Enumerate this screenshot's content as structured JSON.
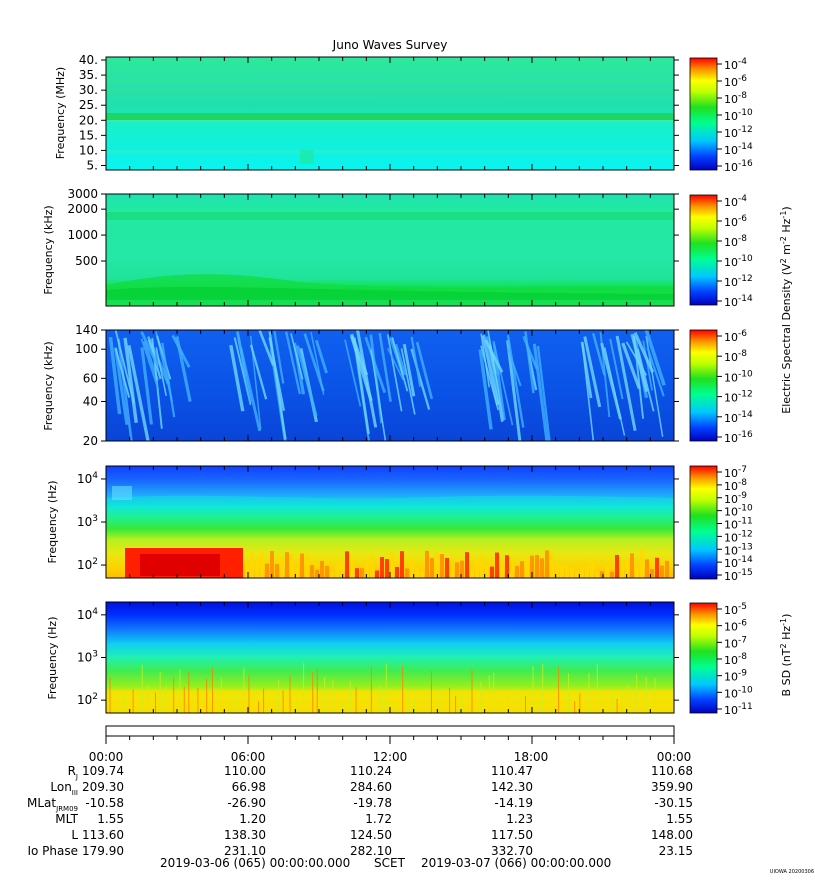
{
  "chart_data": {
    "type": "heatmap",
    "title": "Juno Waves Survey",
    "panels": [
      {
        "id": "p1",
        "ylabel": "Frequency (MHz)",
        "yscale": "linear",
        "ylim": [
          3.5,
          41
        ],
        "yticks": [
          {
            "v": 40,
            "label": "40."
          },
          {
            "v": 35,
            "label": "35."
          },
          {
            "v": 30,
            "label": "30."
          },
          {
            "v": 25,
            "label": "25."
          },
          {
            "v": 20,
            "label": "20."
          },
          {
            "v": 15,
            "label": "15."
          },
          {
            "v": 10,
            "label": "10."
          },
          {
            "v": 5,
            "label": "5."
          }
        ],
        "colorbar": {
          "label": "",
          "ticks": [
            {
              "exp": "-4"
            },
            {
              "exp": "-6"
            },
            {
              "exp": "-8"
            },
            {
              "exp": "-10"
            },
            {
              "exp": "-12"
            },
            {
              "exp": "-14"
            },
            {
              "exp": "-16"
            }
          ]
        }
      },
      {
        "id": "p2",
        "ylabel": "Frequency (kHz)",
        "yscale": "log",
        "ylim": [
          150,
          3000
        ],
        "yticks": [
          {
            "v": 3000,
            "label": "3000"
          },
          {
            "v": 2000,
            "label": "2000"
          },
          {
            "v": 1000,
            "label": "1000"
          },
          {
            "v": 500,
            "label": "500"
          }
        ],
        "colorbar": {
          "label": "",
          "ticks": [
            {
              "exp": "-4"
            },
            {
              "exp": "-6"
            },
            {
              "exp": "-8"
            },
            {
              "exp": "-10"
            },
            {
              "exp": "-12"
            },
            {
              "exp": "-14"
            }
          ]
        }
      },
      {
        "id": "p3",
        "ylabel": "Frequency (kHz)",
        "yscale": "log",
        "ylim": [
          20,
          140
        ],
        "yticks": [
          {
            "v": 140,
            "label": "140"
          },
          {
            "v": 100,
            "label": "100"
          },
          {
            "v": 60,
            "label": "60"
          },
          {
            "v": 40,
            "label": "40"
          },
          {
            "v": 20,
            "label": "20"
          }
        ],
        "colorbar": {
          "label": "Electric Spectral Density",
          "ticks": [
            {
              "exp": "-6"
            },
            {
              "exp": "-8"
            },
            {
              "exp": "-10"
            },
            {
              "exp": "-12"
            },
            {
              "exp": "-14"
            },
            {
              "exp": "-16"
            }
          ]
        }
      },
      {
        "id": "p4",
        "ylabel": "Frequency (Hz)",
        "yscale": "log",
        "ylim": [
          50,
          20000
        ],
        "yticks": [
          {
            "v": 10000,
            "base": "10",
            "exp": "4"
          },
          {
            "v": 1000,
            "base": "10",
            "exp": "3"
          },
          {
            "v": 100,
            "base": "10",
            "exp": "2"
          }
        ],
        "colorbar": {
          "label": "",
          "ticks": [
            {
              "exp": "-7"
            },
            {
              "exp": "-8"
            },
            {
              "exp": "-9"
            },
            {
              "exp": "-10"
            },
            {
              "exp": "-11"
            },
            {
              "exp": "-12"
            },
            {
              "exp": "-13"
            },
            {
              "exp": "-14"
            },
            {
              "exp": "-15"
            }
          ]
        }
      },
      {
        "id": "p5",
        "ylabel": "Frequency (Hz)",
        "yscale": "log",
        "ylim": [
          50,
          20000
        ],
        "yticks": [
          {
            "v": 10000,
            "base": "10",
            "exp": "4"
          },
          {
            "v": 1000,
            "base": "10",
            "exp": "3"
          },
          {
            "v": 100,
            "base": "10",
            "exp": "2"
          }
        ],
        "colorbar": {
          "label": "B SD",
          "ticks": [
            {
              "exp": "-5"
            },
            {
              "exp": "-6"
            },
            {
              "exp": "-7"
            },
            {
              "exp": "-8"
            },
            {
              "exp": "-9"
            },
            {
              "exp": "-10"
            },
            {
              "exp": "-11"
            }
          ]
        }
      }
    ],
    "colorbar_unit_base": "10",
    "x_axis": {
      "ticks": [
        "00:00",
        "06:00",
        "12:00",
        "18:00",
        "00:00"
      ],
      "xlim_hours": [
        0,
        24
      ]
    },
    "ephemeris": [
      {
        "label": "R",
        "sub": "J",
        "values": [
          "109.74",
          "110.00",
          "110.24",
          "110.47",
          "110.68"
        ]
      },
      {
        "label": "Lon",
        "sub": "III",
        "values": [
          "209.30",
          "66.98",
          "284.60",
          "142.30",
          "359.90"
        ]
      },
      {
        "label": "MLat",
        "sub": "JRM09",
        "values": [
          "-10.58",
          "-26.90",
          "-19.78",
          "-14.19",
          "-30.15"
        ]
      },
      {
        "label": "MLT",
        "sub": "",
        "values": [
          "1.55",
          "1.20",
          "1.72",
          "1.23",
          "1.55"
        ]
      },
      {
        "label": "L",
        "sub": "",
        "values": [
          "113.60",
          "138.30",
          "124.50",
          "117.50",
          "148.00"
        ]
      },
      {
        "label": "Io Phase",
        "sub": "",
        "values": [
          "179.90",
          "231.10",
          "282.10",
          "332.70",
          "23.15"
        ]
      }
    ],
    "scet": {
      "start": "2019-03-06 (065) 00:00:00.000",
      "label": "SCET",
      "end": "2019-03-07 (066) 00:00:00.000"
    },
    "credit": "UIOWA 20200306"
  }
}
